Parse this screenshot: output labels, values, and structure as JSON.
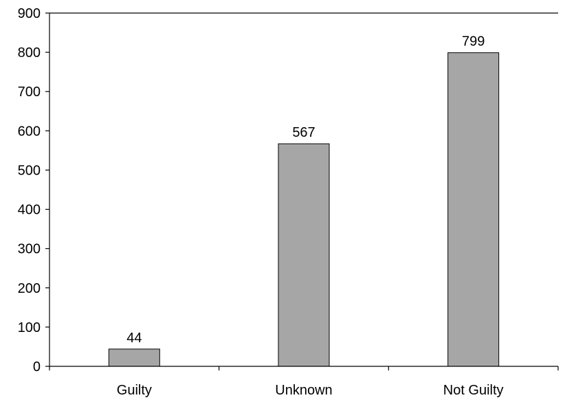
{
  "chart_data": {
    "type": "bar",
    "categories": [
      "Guilty",
      "Unknown",
      "Not Guilty"
    ],
    "values": [
      44,
      567,
      799
    ],
    "data_labels": [
      "44",
      "567",
      "799"
    ],
    "y_ticks": [
      "0",
      "100",
      "200",
      "300",
      "400",
      "500",
      "600",
      "700",
      "800",
      "900"
    ],
    "ylim": [
      0,
      900
    ],
    "title": "",
    "xlabel": "",
    "ylabel": "",
    "grid": false,
    "legend": "none",
    "bar_color": "#a6a6a6"
  }
}
